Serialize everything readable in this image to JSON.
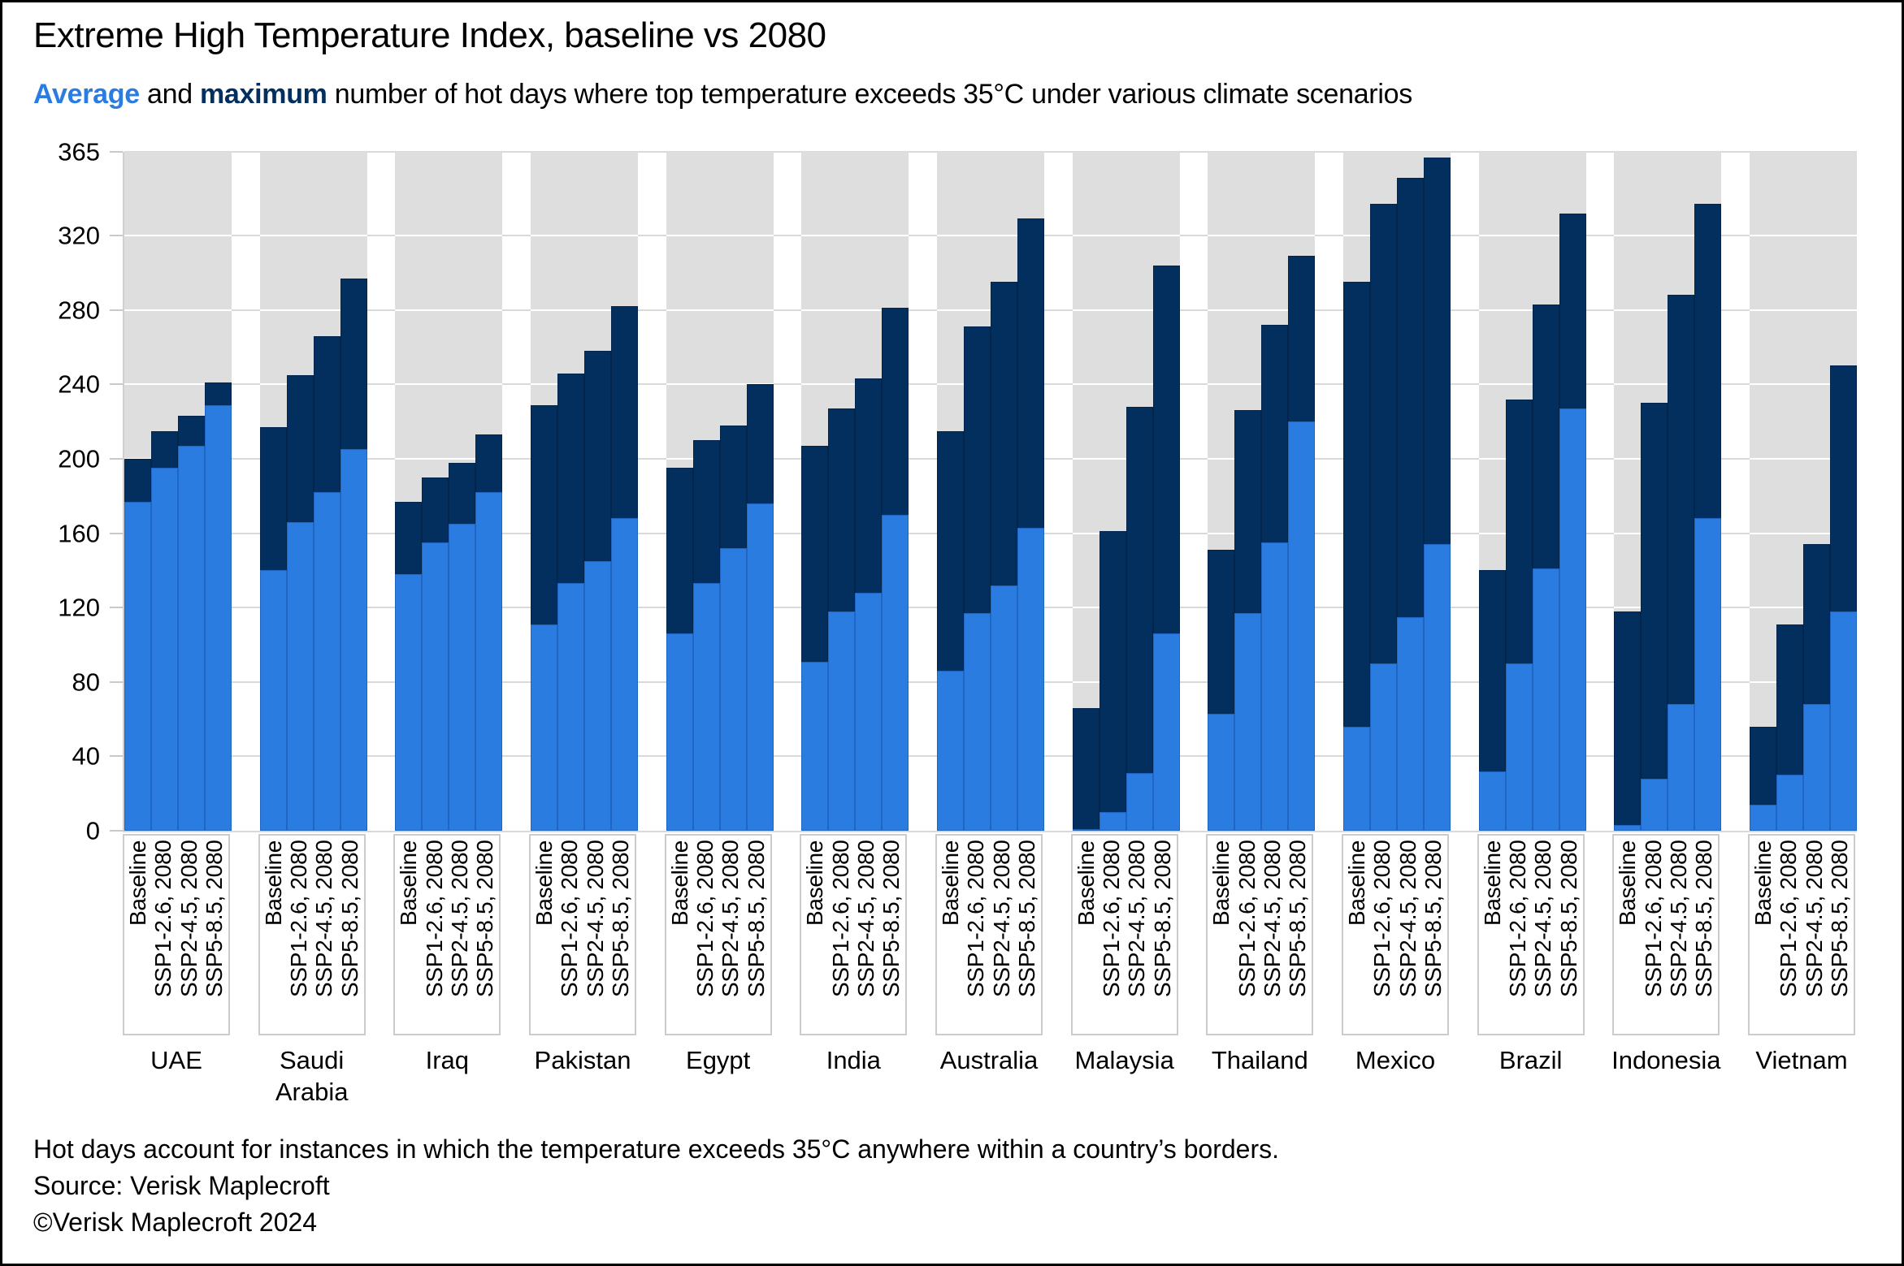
{
  "title": "Extreme High Temperature Index, baseline vs 2080",
  "subtitle": {
    "word_average": "Average",
    "mid": " and ",
    "word_maximum": "maximum",
    "rest": " number of hot days where top temperature exceeds 35°C under various climate scenarios"
  },
  "colors": {
    "average_blue": "#2B7CE0",
    "maximum_navy": "#032F5F",
    "column_gray": "#DEDEDE",
    "gridline": "#D9D9D9",
    "text": "#000000"
  },
  "footer": {
    "note": "Hot days account for instances in which the temperature exceeds 35°C anywhere within a country’s borders.",
    "source": "Source: Verisk Maplecroft",
    "copyright": "©Verisk Maplecroft 2024"
  },
  "chart_data": {
    "type": "bar",
    "subtype": "overlaid-stack: blue = average, navy = maximum, gray column = full year (365)",
    "title": "Extreme High Temperature Index, baseline vs 2080",
    "ylabel": "",
    "xlabel": "",
    "ylim": [
      0,
      365
    ],
    "y_ticks": [
      0,
      40,
      80,
      120,
      160,
      200,
      240,
      280,
      320,
      365
    ],
    "grid": true,
    "legend_position": "in-subtitle",
    "series_names": [
      "Average",
      "Maximum"
    ],
    "scenarios": [
      "Baseline",
      "SSP1-2.6, 2080",
      "SSP2-4.5, 2080",
      "SSP5-8.5, 2080"
    ],
    "countries": [
      {
        "name": "UAE",
        "values": [
          {
            "scenario": "Baseline",
            "avg": 177,
            "max": 200
          },
          {
            "scenario": "SSP1-2.6, 2080",
            "avg": 195,
            "max": 215
          },
          {
            "scenario": "SSP2-4.5, 2080",
            "avg": 207,
            "max": 223
          },
          {
            "scenario": "SSP5-8.5, 2080",
            "avg": 229,
            "max": 241
          }
        ]
      },
      {
        "name": "Saudi Arabia",
        "values": [
          {
            "scenario": "Baseline",
            "avg": 140,
            "max": 217
          },
          {
            "scenario": "SSP1-2.6, 2080",
            "avg": 166,
            "max": 245
          },
          {
            "scenario": "SSP2-4.5, 2080",
            "avg": 182,
            "max": 266
          },
          {
            "scenario": "SSP5-8.5, 2080",
            "avg": 205,
            "max": 297
          }
        ]
      },
      {
        "name": "Iraq",
        "values": [
          {
            "scenario": "Baseline",
            "avg": 138,
            "max": 177
          },
          {
            "scenario": "SSP1-2.6, 2080",
            "avg": 155,
            "max": 190
          },
          {
            "scenario": "SSP2-4.5, 2080",
            "avg": 165,
            "max": 198
          },
          {
            "scenario": "SSP5-8.5, 2080",
            "avg": 182,
            "max": 213
          }
        ]
      },
      {
        "name": "Pakistan",
        "values": [
          {
            "scenario": "Baseline",
            "avg": 111,
            "max": 229
          },
          {
            "scenario": "SSP1-2.6, 2080",
            "avg": 133,
            "max": 246
          },
          {
            "scenario": "SSP2-4.5, 2080",
            "avg": 145,
            "max": 258
          },
          {
            "scenario": "SSP5-8.5, 2080",
            "avg": 168,
            "max": 282
          }
        ]
      },
      {
        "name": "Egypt",
        "values": [
          {
            "scenario": "Baseline",
            "avg": 106,
            "max": 195
          },
          {
            "scenario": "SSP1-2.6, 2080",
            "avg": 133,
            "max": 210
          },
          {
            "scenario": "SSP2-4.5, 2080",
            "avg": 152,
            "max": 218
          },
          {
            "scenario": "SSP5-8.5, 2080",
            "avg": 176,
            "max": 240
          }
        ]
      },
      {
        "name": "India",
        "values": [
          {
            "scenario": "Baseline",
            "avg": 91,
            "max": 207
          },
          {
            "scenario": "SSP1-2.6, 2080",
            "avg": 118,
            "max": 227
          },
          {
            "scenario": "SSP2-4.5, 2080",
            "avg": 128,
            "max": 243
          },
          {
            "scenario": "SSP5-8.5, 2080",
            "avg": 170,
            "max": 281
          }
        ]
      },
      {
        "name": "Australia",
        "values": [
          {
            "scenario": "Baseline",
            "avg": 86,
            "max": 215
          },
          {
            "scenario": "SSP1-2.6, 2080",
            "avg": 117,
            "max": 271
          },
          {
            "scenario": "SSP2-4.5, 2080",
            "avg": 132,
            "max": 295
          },
          {
            "scenario": "SSP5-8.5, 2080",
            "avg": 163,
            "max": 329
          }
        ]
      },
      {
        "name": "Malaysia",
        "values": [
          {
            "scenario": "Baseline",
            "avg": 1,
            "max": 66
          },
          {
            "scenario": "SSP1-2.6, 2080",
            "avg": 10,
            "max": 161
          },
          {
            "scenario": "SSP2-4.5, 2080",
            "avg": 31,
            "max": 228
          },
          {
            "scenario": "SSP5-8.5, 2080",
            "avg": 106,
            "max": 304
          }
        ]
      },
      {
        "name": "Thailand",
        "values": [
          {
            "scenario": "Baseline",
            "avg": 63,
            "max": 151
          },
          {
            "scenario": "SSP1-2.6, 2080",
            "avg": 117,
            "max": 226
          },
          {
            "scenario": "SSP2-4.5, 2080",
            "avg": 155,
            "max": 272
          },
          {
            "scenario": "SSP5-8.5, 2080",
            "avg": 220,
            "max": 309
          }
        ]
      },
      {
        "name": "Mexico",
        "values": [
          {
            "scenario": "Baseline",
            "avg": 56,
            "max": 295
          },
          {
            "scenario": "SSP1-2.6, 2080",
            "avg": 90,
            "max": 337
          },
          {
            "scenario": "SSP2-4.5, 2080",
            "avg": 115,
            "max": 351
          },
          {
            "scenario": "SSP5-8.5, 2080",
            "avg": 154,
            "max": 362
          }
        ]
      },
      {
        "name": "Brazil",
        "values": [
          {
            "scenario": "Baseline",
            "avg": 32,
            "max": 140
          },
          {
            "scenario": "SSP1-2.6, 2080",
            "avg": 90,
            "max": 232
          },
          {
            "scenario": "SSP2-4.5, 2080",
            "avg": 141,
            "max": 283
          },
          {
            "scenario": "SSP5-8.5, 2080",
            "avg": 227,
            "max": 332
          }
        ]
      },
      {
        "name": "Indonesia",
        "values": [
          {
            "scenario": "Baseline",
            "avg": 3,
            "max": 118
          },
          {
            "scenario": "SSP1-2.6, 2080",
            "avg": 28,
            "max": 230
          },
          {
            "scenario": "SSP2-4.5, 2080",
            "avg": 68,
            "max": 288
          },
          {
            "scenario": "SSP5-8.5, 2080",
            "avg": 168,
            "max": 337
          }
        ]
      },
      {
        "name": "Vietnam",
        "values": [
          {
            "scenario": "Baseline",
            "avg": 14,
            "max": 56
          },
          {
            "scenario": "SSP1-2.6, 2080",
            "avg": 30,
            "max": 111
          },
          {
            "scenario": "SSP2-4.5, 2080",
            "avg": 68,
            "max": 154
          },
          {
            "scenario": "SSP5-8.5, 2080",
            "avg": 118,
            "max": 250
          }
        ]
      }
    ]
  }
}
